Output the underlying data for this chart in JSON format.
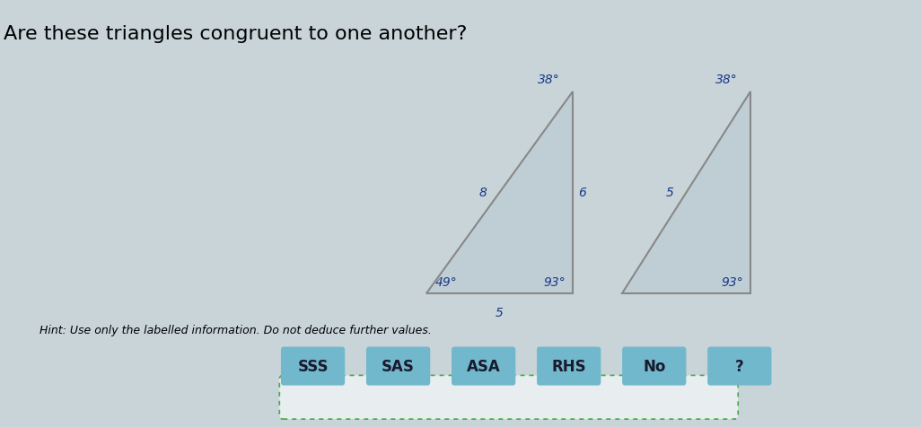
{
  "title": "Are these triangles congruent to one another?",
  "hint": "Hint: Use only the labelled information. Do not deduce further values.",
  "bg_color": "#c8d4d8",
  "triangle_fill": "#bfcdd4",
  "triangle_edge": "#888888",
  "label_color": "#1a3a8a",
  "triangle1": {
    "labels": {
      "angle_top": "38°",
      "angle_bottom_left": "49°",
      "angle_bottom_right": "93°",
      "side_left": "8",
      "side_right": "6",
      "side_bottom": "5"
    }
  },
  "triangle2": {
    "labels": {
      "angle_top": "38°",
      "angle_bottom_right": "93°",
      "side_left": "5"
    }
  },
  "buttons": [
    "SSS",
    "SAS",
    "ASA",
    "RHS",
    "No",
    "?"
  ],
  "button_color": "#72b8cc",
  "button_text_color": "#1a1a2e",
  "label_fontsize": 10,
  "title_fontsize": 16,
  "hint_fontsize": 9,
  "btn_fontsize": 12
}
